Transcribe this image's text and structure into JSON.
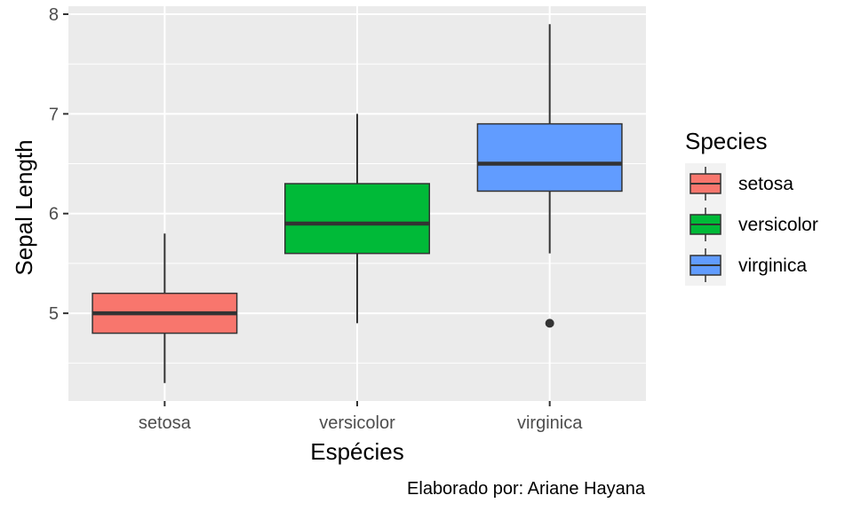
{
  "chart_data": {
    "type": "boxplot",
    "xlabel": "Espécies",
    "ylabel": "Sepal Length",
    "caption": "Elaborado por: Ariane Hayana",
    "categories": [
      "setosa",
      "versicolor",
      "virginica"
    ],
    "ylim": [
      4.12,
      8.08
    ],
    "yticks": [
      5,
      6,
      7,
      8
    ],
    "grid": true,
    "legend": {
      "title": "Species",
      "position": "right"
    },
    "series": [
      {
        "name": "setosa",
        "color": "#F8766D",
        "whisker_low": 4.3,
        "q1": 4.8,
        "median": 5.0,
        "q3": 5.2,
        "whisker_high": 5.8,
        "outliers": []
      },
      {
        "name": "versicolor",
        "color": "#00BA38",
        "whisker_low": 4.9,
        "q1": 5.6,
        "median": 5.9,
        "q3": 6.3,
        "whisker_high": 7.0,
        "outliers": []
      },
      {
        "name": "virginica",
        "color": "#619CFF",
        "whisker_low": 5.6,
        "q1": 6.225,
        "median": 6.5,
        "q3": 6.9,
        "whisker_high": 7.9,
        "outliers": [
          4.9
        ]
      }
    ]
  }
}
